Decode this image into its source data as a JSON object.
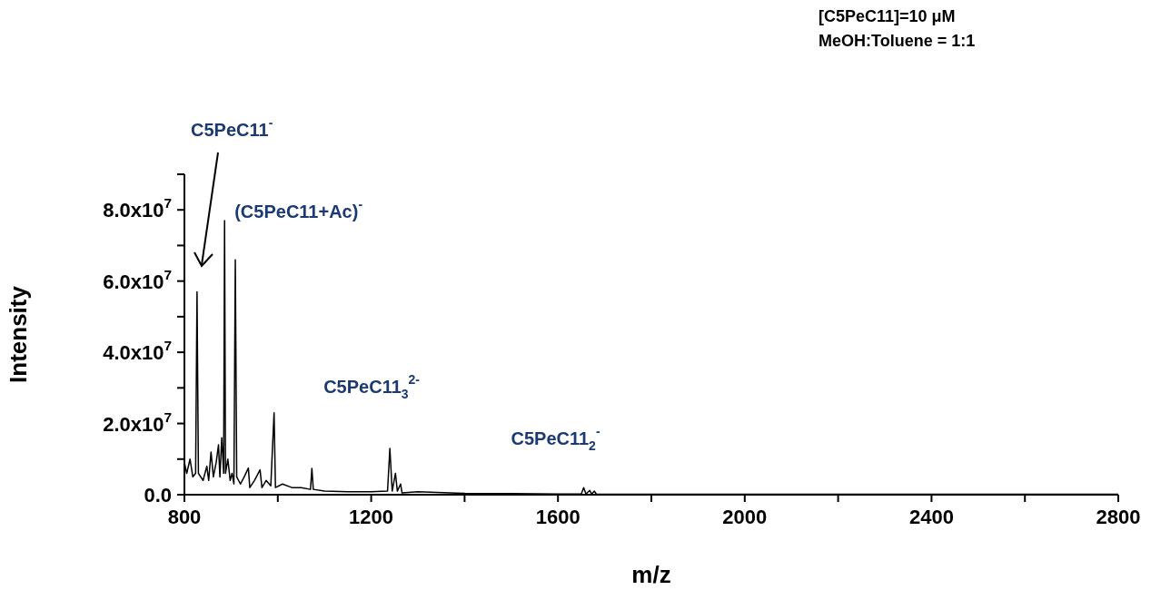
{
  "chart_data": {
    "type": "line",
    "xlabel": "m/z",
    "ylabel": "Intensity",
    "color": "#000000",
    "x": [
      800,
      805,
      812,
      818,
      824,
      827,
      830,
      840,
      848,
      852,
      857,
      862,
      868,
      873,
      876,
      880,
      884,
      886,
      888,
      893,
      898,
      902,
      906,
      909,
      912,
      920,
      928,
      937,
      940,
      950,
      962,
      966,
      975,
      985,
      992,
      995,
      1010,
      1030,
      1050,
      1070,
      1073,
      1076,
      1100,
      1150,
      1200,
      1235,
      1240,
      1245,
      1252,
      1256,
      1263,
      1266,
      1300,
      1400,
      1500,
      1600,
      1650,
      1655,
      1660,
      1668,
      1672,
      1678,
      1682,
      1800,
      2000,
      2400,
      2800
    ],
    "values": [
      9000000,
      6000000,
      10000000,
      5000000,
      6000000,
      57000000,
      6000000,
      4000000,
      8000000,
      4000000,
      12000000,
      5000000,
      9000000,
      14000000,
      5000000,
      16000000,
      6000000,
      77000000,
      6000000,
      10000000,
      4000000,
      6000000,
      3000000,
      66000000,
      5000000,
      3000000,
      5000000,
      7500000,
      2000000,
      4000000,
      7000000,
      2000000,
      4000000,
      2500000,
      23000000,
      2000000,
      3000000,
      2000000,
      2000000,
      1500000,
      7400000,
      1500000,
      1000000,
      800000,
      800000,
      1000000,
      13000000,
      1000000,
      6000000,
      1000000,
      3000000,
      500000,
      800000,
      400000,
      300000,
      200000,
      200000,
      2000000,
      200000,
      1200000,
      200000,
      1000000,
      200000,
      100000,
      100000,
      100000,
      100000
    ],
    "xlim": [
      800,
      2800
    ],
    "xticks": [
      800,
      {
        "value": 1000,
        "label": null
      },
      1200,
      {
        "value": 1400,
        "label": null
      },
      1600,
      {
        "value": 1800,
        "label": null
      },
      2000,
      {
        "value": 2200,
        "label": null
      },
      2400,
      {
        "value": 2600,
        "label": null
      },
      2800
    ],
    "ylim": [
      0,
      90000000
    ],
    "yticks": [
      {
        "value": 0,
        "label": "0.0"
      },
      {
        "value": 10000000,
        "label": null
      },
      {
        "value": 20000000,
        "label": "2.0x10$^{7}$"
      },
      {
        "value": 30000000,
        "label": null
      },
      {
        "value": 40000000,
        "label": "4.0x10$^{7}$"
      },
      {
        "value": 50000000,
        "label": null
      },
      {
        "value": 60000000,
        "label": "6.0x10$^{7}$"
      },
      {
        "value": 70000000,
        "label": null
      },
      {
        "value": 80000000,
        "label": "8.0x10$^{7}$"
      },
      {
        "value": 90000000,
        "label": null
      }
    ],
    "annotations": [
      "[C5PeC11]=10 μM",
      "MeOH:Toluene = 1:1",
      "C5PeC11$^{-}$",
      {
        "text": "(C5PeC11+Ac)$^{-}$",
        "x": 886,
        "y": 77000000
      },
      {
        "text": "C5PeC11$_{3}$$^{2-}$",
        "x": 1240,
        "y": 13000000
      },
      {
        "text": "C5PeC11$_{2}$$^{-}$",
        "x": 1655,
        "y": 2000000
      }
    ]
  }
}
